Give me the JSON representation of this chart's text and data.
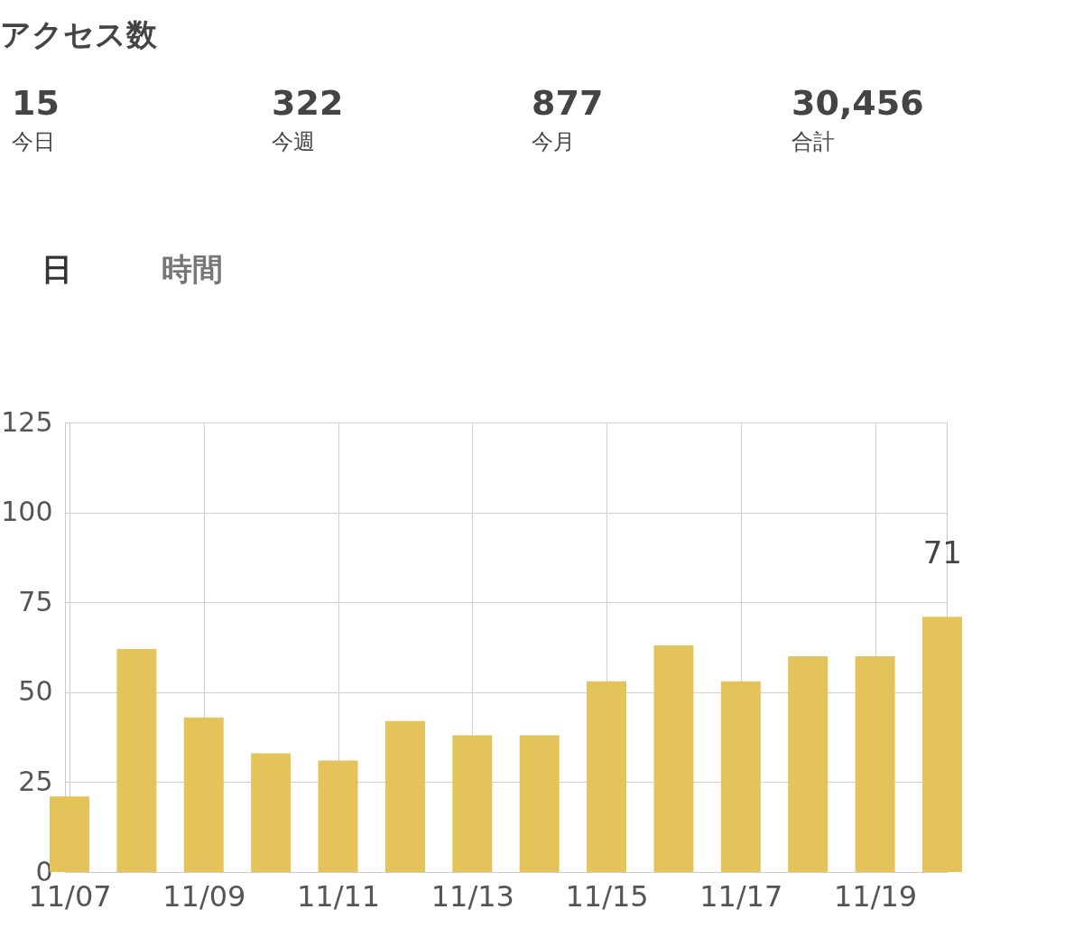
{
  "chart_data": [
    {
      "type": "other",
      "title": "アクセス数",
      "annotations": [
        "15",
        "今日",
        "322",
        "今週",
        "877",
        "今月",
        "30,456",
        "合計",
        "日",
        "時間"
      ]
    },
    {
      "type": "bar",
      "categories": [
        "11/07",
        null,
        "11/09",
        null,
        "11/11",
        null,
        "11/13",
        null,
        "11/15",
        null,
        "11/17",
        null,
        "11/19",
        null
      ],
      "values": [
        21,
        62,
        43,
        33,
        31,
        42,
        38,
        38,
        53,
        63,
        53,
        60,
        60,
        71
      ],
      "value_labels": [
        null,
        null,
        null,
        null,
        null,
        null,
        null,
        null,
        null,
        null,
        null,
        null,
        null,
        "71"
      ],
      "color": "#e4c35a",
      "ylim": [
        0,
        125
      ],
      "yticks": [
        0,
        25,
        50,
        75,
        100,
        125
      ],
      "grid": true
    }
  ]
}
